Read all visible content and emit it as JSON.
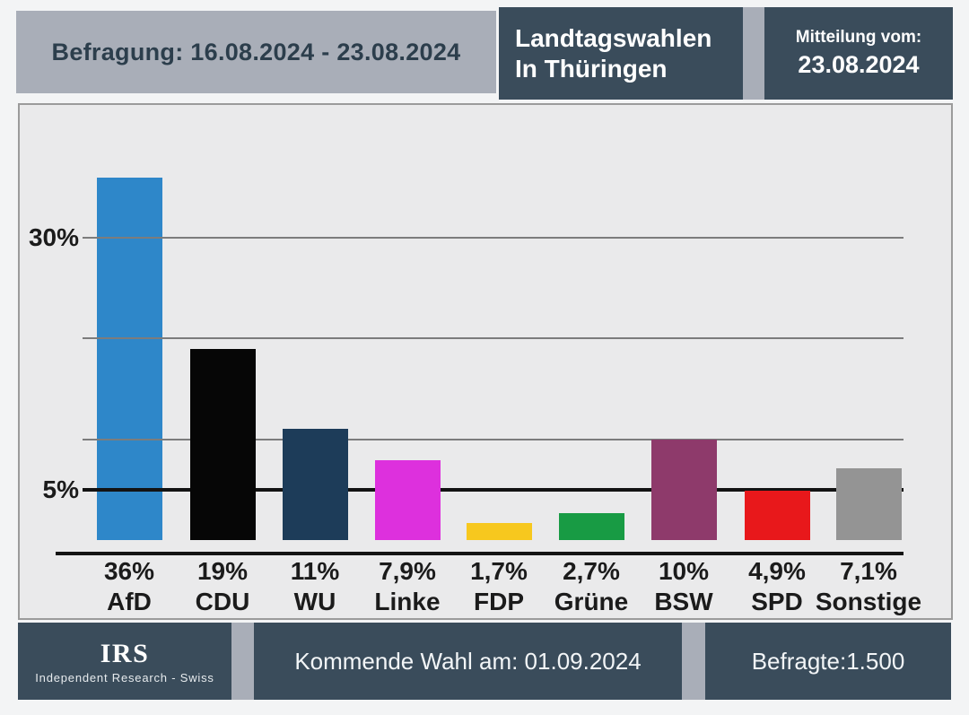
{
  "header": {
    "survey_period": "Befragung: 16.08.2024 - 23.08.2024",
    "title_line1": "Landtagswahlen",
    "title_line2": "In Thüringen",
    "release_label": "Mitteilung vom:",
    "release_date": "23.08.2024"
  },
  "chart_data": {
    "type": "bar",
    "title": "Landtagswahlen In Thüringen",
    "categories": [
      "AfD",
      "CDU",
      "WU",
      "Linke",
      "FDP",
      "Grüne",
      "BSW",
      "SPD",
      "Sonstige"
    ],
    "party_slugs": [
      "afd",
      "cdu",
      "wu",
      "linke",
      "fdp",
      "gruene",
      "bsw",
      "spd",
      "sonstige"
    ],
    "values": [
      36,
      19,
      11,
      7.9,
      1.7,
      2.7,
      10,
      4.9,
      7.1
    ],
    "value_labels": [
      "36%",
      "19%",
      "11%",
      "7,9%",
      "1,7%",
      "2,7%",
      "10%",
      "4,9%",
      "7,1%"
    ],
    "bar_colors": [
      "#2e87c9",
      "#060606",
      "#1d3c59",
      "#dd30dd",
      "#f7c81e",
      "#189b44",
      "#8e3a6b",
      "#e8181b",
      "#949494"
    ],
    "xlabel": "",
    "ylabel": "",
    "ylim": [
      0,
      43
    ],
    "grid": true,
    "y_ticks": [
      {
        "value": 30,
        "label": "30%"
      },
      {
        "value": 5,
        "label": "5%"
      }
    ],
    "gridlines_at": [
      30,
      20,
      10
    ],
    "five_percent_threshold": 5
  },
  "footer": {
    "logo_text": "IRS",
    "logo_subtext": "Independent Research - Swiss",
    "next_election": "Kommende Wahl am: 01.09.2024",
    "sample_size": "Befragte:1.500"
  },
  "colors": {
    "slate": "#3a4c5b",
    "header_gray": "#a9aeb8",
    "page_bg": "#f3f4f5",
    "chart_bg": "#eaeaeb",
    "chart_border": "#9b9b9b",
    "grid": "#7c7c7c",
    "threshold": "#131313",
    "axis": "#131313",
    "text_dark": "#2c3e4c",
    "label_dark": "#1b1b1b"
  }
}
